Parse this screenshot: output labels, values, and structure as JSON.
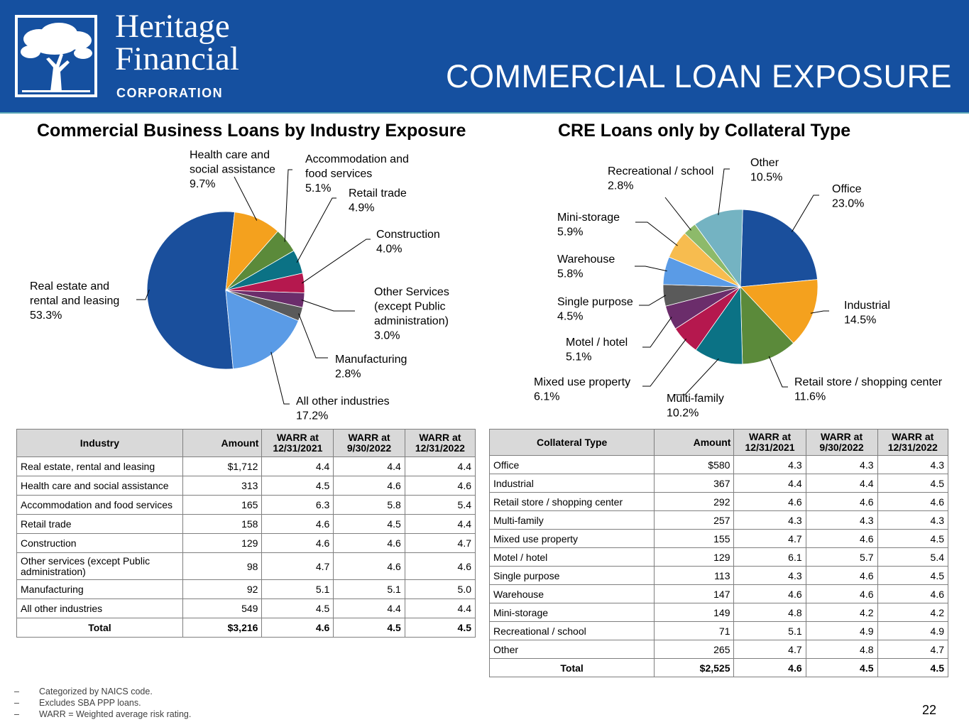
{
  "header": {
    "brand_line1": "Heritage",
    "brand_line2": "Financial",
    "brand_line3": "CORPORATION",
    "title": "COMMERCIAL LOAN EXPOSURE",
    "bg_color": "#1550a0"
  },
  "chart_data": [
    {
      "type": "pie",
      "title": "Commercial Business Loans by Industry Exposure",
      "slices": [
        {
          "label": [
            "Real estate and",
            "rental and leasing"
          ],
          "value": 53.3,
          "value_label": "53.3%",
          "color": "#1a4f9c"
        },
        {
          "label": [
            "Health care and",
            "social assistance"
          ],
          "value": 9.7,
          "value_label": "9.7%",
          "color": "#f4a11e"
        },
        {
          "label": [
            "Accommodation and",
            "food services"
          ],
          "value": 5.1,
          "value_label": "5.1%",
          "color": "#5b8a3a"
        },
        {
          "label": [
            "Retail trade"
          ],
          "value": 4.9,
          "value_label": "4.9%",
          "color": "#0b7285"
        },
        {
          "label": [
            "Construction"
          ],
          "value": 4.0,
          "value_label": "4.0%",
          "color": "#b5184e"
        },
        {
          "label": [
            "Other Services",
            "(except Public",
            "administration)"
          ],
          "value": 3.0,
          "value_label": "3.0%",
          "color": "#6b2d6b"
        },
        {
          "label": [
            "Manufacturing"
          ],
          "value": 2.8,
          "value_label": "2.8%",
          "color": "#5a5a5a"
        },
        {
          "label": [
            "All other industries"
          ],
          "value": 17.2,
          "value_label": "17.2%",
          "color": "#5a9be6"
        }
      ]
    },
    {
      "type": "pie",
      "title": "CRE Loans only by Collateral Type",
      "slices": [
        {
          "label": [
            "Office"
          ],
          "value": 23.0,
          "value_label": "23.0%",
          "color": "#1a4f9c"
        },
        {
          "label": [
            "Industrial"
          ],
          "value": 14.5,
          "value_label": "14.5%",
          "color": "#f4a11e"
        },
        {
          "label": [
            "Retail store / shopping center"
          ],
          "value": 11.6,
          "value_label": "11.6%",
          "color": "#5b8a3a"
        },
        {
          "label": [
            "Multi-family"
          ],
          "value": 10.2,
          "value_label": "10.2%",
          "color": "#0b7285"
        },
        {
          "label": [
            "Mixed use property"
          ],
          "value": 6.1,
          "value_label": "6.1%",
          "color": "#b5184e"
        },
        {
          "label": [
            "Motel / hotel"
          ],
          "value": 5.1,
          "value_label": "5.1%",
          "color": "#6b2d6b"
        },
        {
          "label": [
            "Single purpose"
          ],
          "value": 4.5,
          "value_label": "4.5%",
          "color": "#5a5a5a"
        },
        {
          "label": [
            "Warehouse"
          ],
          "value": 5.8,
          "value_label": "5.8%",
          "color": "#5a9be6"
        },
        {
          "label": [
            "Mini-storage"
          ],
          "value": 5.9,
          "value_label": "5.9%",
          "color": "#f7bc4f"
        },
        {
          "label": [
            "Recreational / school"
          ],
          "value": 2.8,
          "value_label": "2.8%",
          "color": "#8dba6a"
        },
        {
          "label": [
            "Other"
          ],
          "value": 10.5,
          "value_label": "10.5%",
          "color": "#74b3c2"
        }
      ]
    },
    {
      "type": "table",
      "columns": [
        "Industry",
        "Amount",
        "WARR at 12/31/2021",
        "WARR at 9/30/2022",
        "WARR at 12/31/2022"
      ],
      "rows": [
        [
          "Real estate, rental and leasing",
          "$1,712",
          "4.4",
          "4.4",
          "4.4"
        ],
        [
          "Health care and social assistance",
          "313",
          "4.5",
          "4.6",
          "4.6"
        ],
        [
          "Accommodation and food services",
          "165",
          "6.3",
          "5.8",
          "5.4"
        ],
        [
          "Retail trade",
          "158",
          "4.6",
          "4.5",
          "4.4"
        ],
        [
          "Construction",
          "129",
          "4.6",
          "4.6",
          "4.7"
        ],
        [
          "Other services (except Public administration)",
          "98",
          "4.7",
          "4.6",
          "4.6"
        ],
        [
          "Manufacturing",
          "92",
          "5.1",
          "5.1",
          "5.0"
        ],
        [
          "All other industries",
          "549",
          "4.5",
          "4.4",
          "4.4"
        ]
      ],
      "total": [
        "Total",
        "$3,216",
        "4.6",
        "4.5",
        "4.5"
      ]
    },
    {
      "type": "table",
      "columns": [
        "Collateral Type",
        "Amount",
        "WARR at 12/31/2021",
        "WARR at 9/30/2022",
        "WARR at 12/31/2022"
      ],
      "rows": [
        [
          "Office",
          "$580",
          "4.3",
          "4.3",
          "4.3"
        ],
        [
          "Industrial",
          "367",
          "4.4",
          "4.4",
          "4.5"
        ],
        [
          "Retail store / shopping center",
          "292",
          "4.6",
          "4.6",
          "4.6"
        ],
        [
          "Multi-family",
          "257",
          "4.3",
          "4.3",
          "4.3"
        ],
        [
          "Mixed use property",
          "155",
          "4.7",
          "4.6",
          "4.5"
        ],
        [
          "Motel / hotel",
          "129",
          "6.1",
          "5.7",
          "5.4"
        ],
        [
          "Single purpose",
          "113",
          "4.3",
          "4.6",
          "4.5"
        ],
        [
          "Warehouse",
          "147",
          "4.6",
          "4.6",
          "4.6"
        ],
        [
          "Mini-storage",
          "149",
          "4.8",
          "4.2",
          "4.2"
        ],
        [
          "Recreational / school",
          "71",
          "5.1",
          "4.9",
          "4.9"
        ],
        [
          "Other",
          "265",
          "4.7",
          "4.8",
          "4.7"
        ]
      ],
      "total": [
        "Total",
        "$2,525",
        "4.6",
        "4.5",
        "4.5"
      ]
    }
  ],
  "footnotes": [
    "Categorized by NAICS code.",
    "Excludes SBA PPP loans.",
    "WARR = Weighted average risk rating."
  ],
  "footnote_marker": "–",
  "page_number": "22"
}
